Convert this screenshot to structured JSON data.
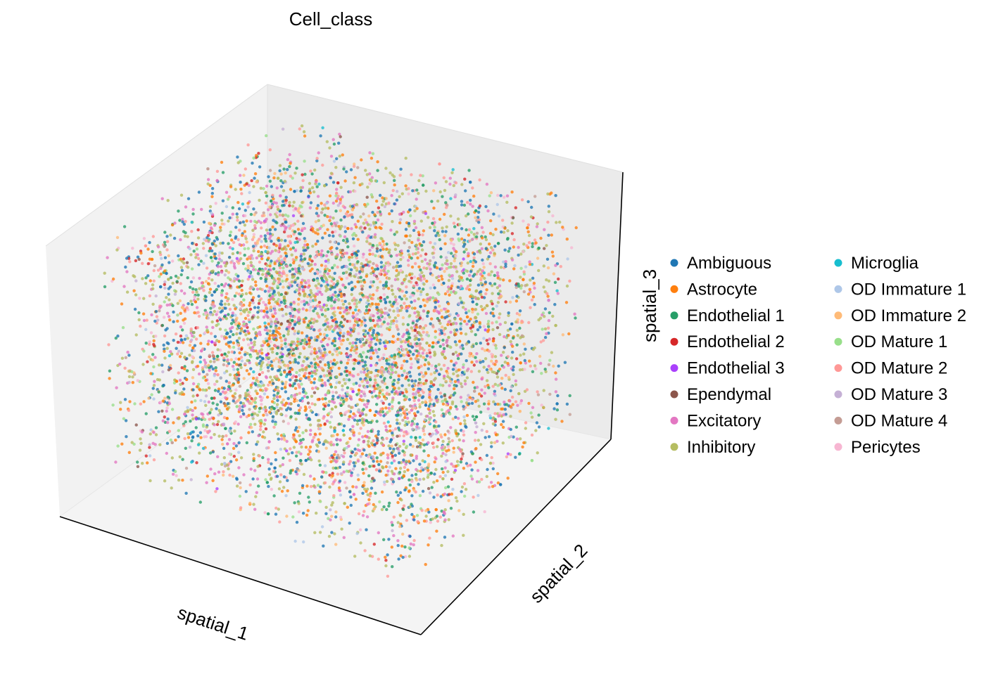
{
  "chart_data": {
    "type": "scatter",
    "projection": "3d",
    "title": "Cell_class",
    "xlabel": "spatial_1",
    "ylabel": "spatial_2",
    "zlabel": "spatial_3",
    "grid": false,
    "ticks": false,
    "legend_position": "right",
    "legend_columns": 2,
    "point_count_note": "",
    "categories": [
      {
        "name": "Ambiguous",
        "color": "#1f77b4"
      },
      {
        "name": "Astrocyte",
        "color": "#ff7f0e"
      },
      {
        "name": "Endothelial 1",
        "color": "#279e68"
      },
      {
        "name": "Endothelial 2",
        "color": "#d62728"
      },
      {
        "name": "Endothelial 3",
        "color": "#aa40fc"
      },
      {
        "name": "Ependymal",
        "color": "#8c564b"
      },
      {
        "name": "Excitatory",
        "color": "#e377c2"
      },
      {
        "name": "Inhibitory",
        "color": "#b5bd61"
      },
      {
        "name": "Microglia",
        "color": "#17becf"
      },
      {
        "name": "OD Immature 1",
        "color": "#aec7e8"
      },
      {
        "name": "OD Immature 2",
        "color": "#ffbb78"
      },
      {
        "name": "OD Mature 1",
        "color": "#98df8a"
      },
      {
        "name": "OD Mature 2",
        "color": "#ff9896"
      },
      {
        "name": "OD Mature 3",
        "color": "#c5b0d5"
      },
      {
        "name": "OD Mature 4",
        "color": "#c49c94"
      },
      {
        "name": "Pericytes",
        "color": "#f7b6d2"
      }
    ],
    "category_weights": [
      0.14,
      0.12,
      0.09,
      0.03,
      0.005,
      0.01,
      0.12,
      0.2,
      0.01,
      0.02,
      0.05,
      0.04,
      0.1,
      0.02,
      0.02,
      0.035
    ]
  }
}
